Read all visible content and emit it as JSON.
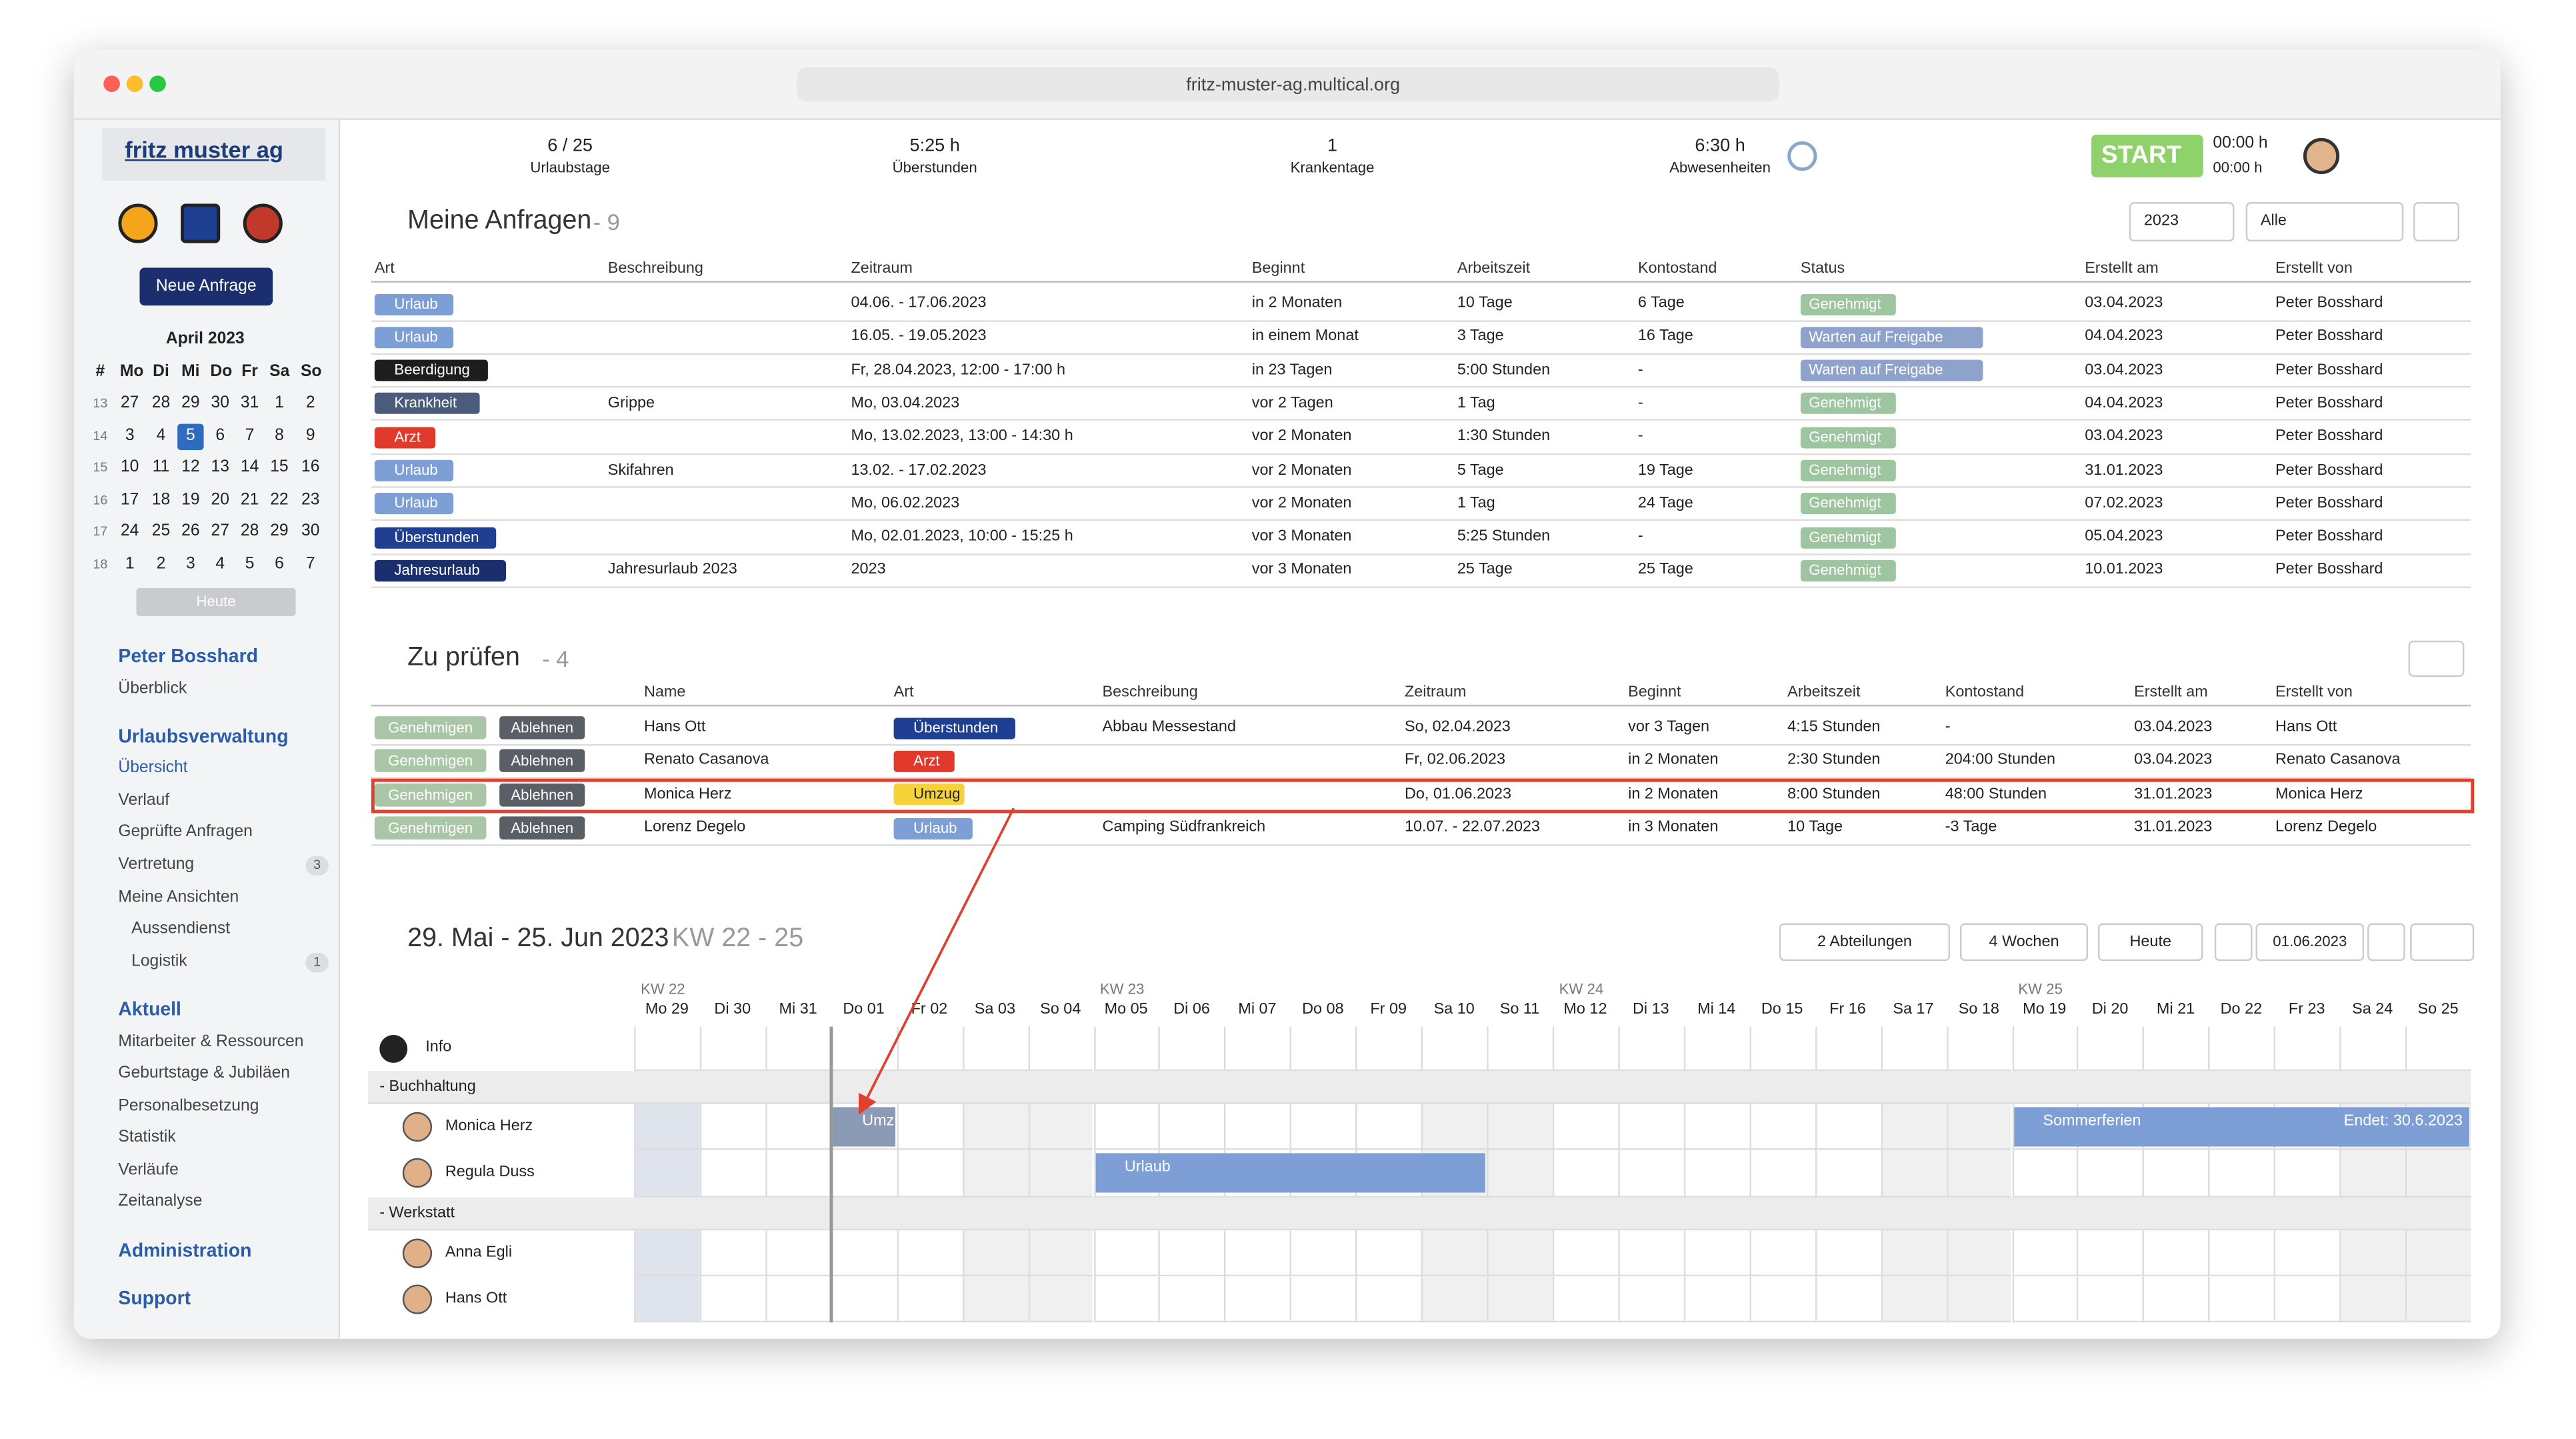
{
  "browser": {
    "url": "fritz-muster-ag.multical.org"
  },
  "sidebar": {
    "logo": "fritz muster ag",
    "new_request": "Neue Anfrage",
    "calendar": {
      "month": "April 2023",
      "head": [
        "#",
        "Mo",
        "Di",
        "Mi",
        "Do",
        "Fr",
        "Sa",
        "So"
      ],
      "weeks": [
        [
          13,
          27,
          28,
          29,
          30,
          31,
          1,
          2
        ],
        [
          14,
          3,
          4,
          5,
          6,
          7,
          8,
          9
        ],
        [
          15,
          10,
          11,
          12,
          13,
          14,
          15,
          16
        ],
        [
          16,
          17,
          18,
          19,
          20,
          21,
          22,
          23
        ],
        [
          17,
          24,
          25,
          26,
          27,
          28,
          29,
          30
        ],
        [
          18,
          1,
          2,
          3,
          4,
          5,
          6,
          7
        ]
      ],
      "today": "Heute"
    },
    "menu": [
      {
        "text": "Peter Bosshard"
      },
      {
        "text": "Überblick"
      },
      {
        "text": "Urlaubsverwaltung"
      },
      {
        "text": "Übersicht"
      },
      {
        "text": "Verlauf"
      },
      {
        "text": "Geprüfte Anfragen"
      },
      {
        "text": "Vertretung",
        "badge": 3
      },
      {
        "text": "Meine Ansichten"
      },
      {
        "text": "Aussendienst"
      },
      {
        "text": "Logistik",
        "badge": 1
      },
      {
        "text": "Aktuell"
      },
      {
        "text": "Mitarbeiter & Ressourcen"
      },
      {
        "text": "Geburtstage & Jubiläen"
      },
      {
        "text": "Personalbesetzung"
      },
      {
        "text": "Statistik"
      },
      {
        "text": "Verläufe"
      },
      {
        "text": "Zeitanalyse"
      },
      {
        "text": "Administration"
      },
      {
        "text": "Support"
      }
    ]
  },
  "stats": [
    {
      "value": "6 / 25",
      "label": "Urlaubstage"
    },
    {
      "value": "5:25 h",
      "label": "Überstunden"
    },
    {
      "value": "1",
      "label": "Krankentage"
    },
    {
      "value": "6:30 h",
      "label": "Abwesenheiten"
    }
  ],
  "header": {
    "start": "START",
    "time_1": "00:00 h",
    "time_2": "00:00 h"
  },
  "my_requests": {
    "title": "Meine Anfragen",
    "count": "- 9",
    "year": "2023",
    "filter": "Alle",
    "columns": [
      "Art",
      "Beschreibung",
      "Zeitraum",
      "Beginnt",
      "Arbeitszeit",
      "Kontostand",
      "Status",
      "Erstellt am",
      "Erstellt von"
    ],
    "rows": [
      [
        {
          "text": "Urlaub",
          "color": "#7d9fd6"
        },
        null,
        "04.06. - 17.06.2023",
        "in 2 Monaten",
        "10 Tage",
        "6 Tage",
        {
          "text": "Genehmigt",
          "color": "#9dc59f"
        },
        "03.04.2023",
        "Peter Bosshard"
      ],
      [
        {
          "text": "Urlaub",
          "color": "#7d9fd6"
        },
        null,
        "16.05. - 19.05.2023",
        "in einem Monat",
        "3 Tage",
        "16 Tage",
        {
          "text": "Warten auf Freigabe",
          "color": "#8ea3cb"
        },
        "04.04.2023",
        "Peter Bosshard"
      ],
      [
        {
          "text": "Beerdigung",
          "color": "#1d1d1d"
        },
        null,
        "Fr, 28.04.2023, 12:00 - 17:00 h",
        "in 23 Tagen",
        "5:00 Stunden",
        "-",
        {
          "text": "Warten auf Freigabe",
          "color": "#8ea3cb"
        },
        "03.04.2023",
        "Peter Bosshard"
      ],
      [
        {
          "text": "Krankheit",
          "color": "#4b5b7c"
        },
        "Grippe",
        "Mo, 03.04.2023",
        "vor 2 Tagen",
        "1 Tag",
        "-",
        {
          "text": "Genehmigt",
          "color": "#9dc59f"
        },
        "04.04.2023",
        "Peter Bosshard"
      ],
      [
        {
          "text": "Arzt",
          "color": "#e2392d"
        },
        null,
        "Mo, 13.02.2023, 13:00 - 14:30 h",
        "vor 2 Monaten",
        "1:30 Stunden",
        "-",
        {
          "text": "Genehmigt",
          "color": "#9dc59f"
        },
        "03.04.2023",
        "Peter Bosshard"
      ],
      [
        {
          "text": "Urlaub",
          "color": "#7d9fd6"
        },
        "Skifahren",
        "13.02. - 17.02.2023",
        "vor 2 Monaten",
        "5 Tage",
        "19 Tage",
        {
          "text": "Genehmigt",
          "color": "#9dc59f"
        },
        "31.01.2023",
        "Peter Bosshard"
      ],
      [
        {
          "text": "Urlaub",
          "color": "#7d9fd6"
        },
        null,
        "Mo, 06.02.2023",
        "vor 2 Monaten",
        "1 Tag",
        "24 Tage",
        {
          "text": "Genehmigt",
          "color": "#9dc59f"
        },
        "07.02.2023",
        "Peter Bosshard"
      ],
      [
        {
          "text": "Überstunden",
          "color": "#1f3f92"
        },
        null,
        "Mo, 02.01.2023, 10:00 - 15:25 h",
        "vor 3 Monaten",
        "5:25 Stunden",
        "-",
        {
          "text": "Genehmigt",
          "color": "#9dc59f"
        },
        "05.04.2023",
        "Peter Bosshard"
      ],
      [
        {
          "text": "Jahresurlaub",
          "color": "#1b2f6e"
        },
        "Jahresurlaub 2023",
        "2023",
        "vor 3 Monaten",
        "25 Tage",
        "25 Tage",
        {
          "text": "Genehmigt",
          "color": "#9dc59f"
        },
        "10.01.2023",
        "Peter Bosshard"
      ]
    ]
  },
  "to_review": {
    "title": "Zu prüfen",
    "count": "- 4",
    "approve": "Genehmigen",
    "reject": "Ablehnen",
    "columns": [
      "Name",
      "Art",
      "Beschreibung",
      "Zeitraum",
      "Beginnt",
      "Arbeitszeit",
      "Kontostand",
      "Erstellt am",
      "Erstellt von"
    ],
    "rows": [
      [
        "Hans Ott",
        {
          "text": "Überstunden",
          "color": "#1f3f92"
        },
        "Abbau Messestand",
        "So, 02.04.2023",
        "vor 3 Tagen",
        "4:15 Stunden",
        "-",
        "03.04.2023",
        "Hans Ott"
      ],
      [
        "Renato Casanova",
        {
          "text": "Arzt",
          "color": "#e2392d"
        },
        null,
        "Fr, 02.06.2023",
        "in 2 Monaten",
        "2:30 Stunden",
        "204:00 Stunden",
        "03.04.2023",
        "Renato Casanova"
      ],
      [
        "Monica Herz",
        {
          "text": "Umzug",
          "color": "#f4d238"
        },
        null,
        "Do, 01.06.2023",
        "in 2 Monaten",
        "8:00 Stunden",
        "48:00 Stunden",
        "31.01.2023",
        "Monica Herz"
      ],
      [
        "Lorenz Degelo",
        {
          "text": "Urlaub",
          "color": "#7d9fd6"
        },
        "Camping Südfrankreich",
        "10.07. - 22.07.2023",
        "in 3 Monaten",
        "10 Tage",
        "-3 Tage",
        "31.01.2023",
        "Lorenz Degelo"
      ]
    ]
  },
  "planner": {
    "title": "29. Mai - 25. Jun 2023",
    "kw": "KW 22 - 25",
    "buttons": [
      "2 Abteilungen",
      "4 Wochen",
      "Heute"
    ],
    "date": "01.06.2023",
    "weeks": [
      "KW 22",
      "KW 23",
      "KW 24",
      "KW 25"
    ],
    "days": [
      "Mo 29",
      "Di 30",
      "Mi 31",
      "Do 01",
      "Fr 02",
      "Sa 03",
      "So 04",
      "Mo 05",
      "Di 06",
      "Mi 07",
      "Do 08",
      "Fr 09",
      "Sa 10",
      "So 11",
      "Mo 12",
      "Di 13",
      "Mi 14",
      "Do 15",
      "Fr 16",
      "Sa 17",
      "So 18",
      "Mo 19",
      "Di 20",
      "Mi 21",
      "Do 22",
      "Fr 23",
      "Sa 24",
      "So 25"
    ],
    "info": "Info",
    "groups": [
      {
        "name": "- Buchhaltung",
        "people": [
          {
            "name": "Monica Herz",
            "entries": [
              {
                "label": "Umzug"
              },
              {
                "label": "Sommerferien",
                "note": "Endet: 30.6.2023"
              }
            ]
          },
          {
            "name": "Regula Duss",
            "entries": [
              {
                "label": "Urlaub"
              }
            ]
          }
        ]
      },
      {
        "name": "- Werkstatt",
        "people": [
          {
            "name": "Anna Egli"
          },
          {
            "name": "Hans Ott"
          }
        ]
      }
    ]
  }
}
